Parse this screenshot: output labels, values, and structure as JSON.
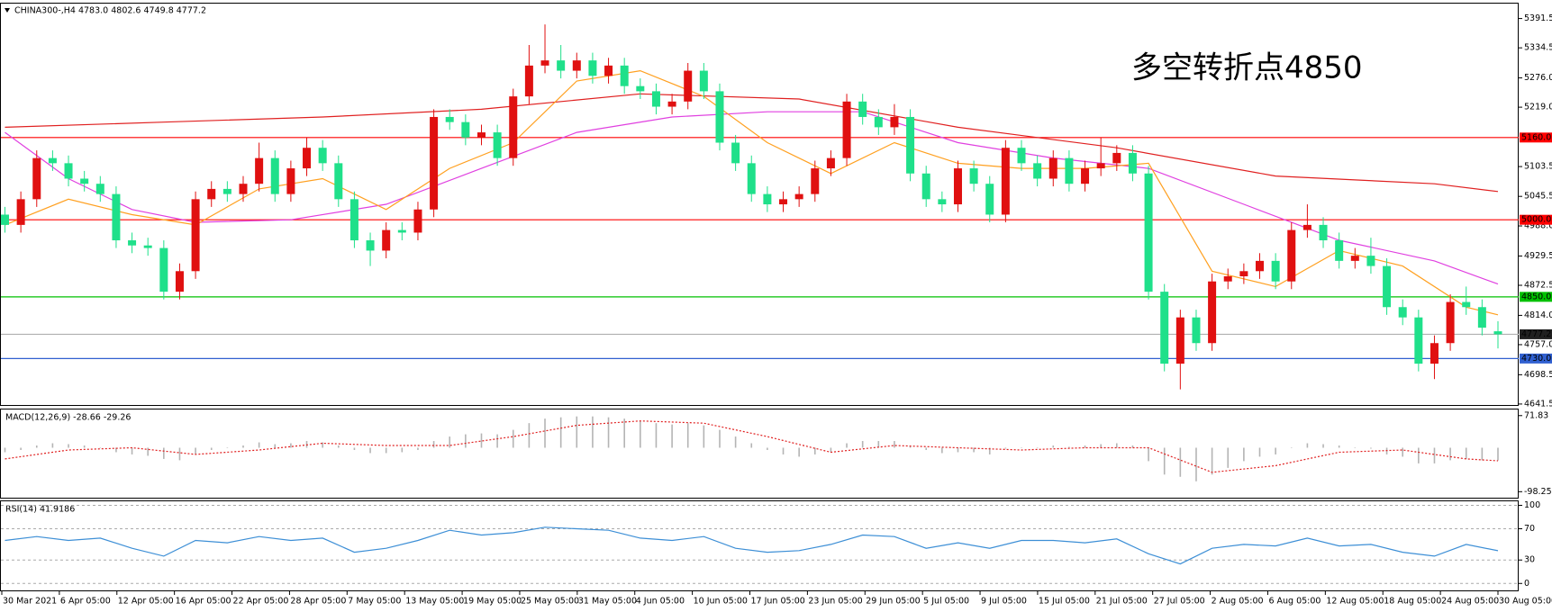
{
  "chart_data": [
    {
      "type": "candlestick",
      "title": "CHINA300-,H4  4783.0 4802.6 4749.8 4777.2",
      "annotation": "多空转折点4850",
      "annotation_color": "#e8141e",
      "up_color": "#e01010",
      "down_color": "#1fe08a",
      "open": [
        5010,
        4990,
        5040,
        5120,
        5110,
        5080,
        5070,
        5050,
        4960,
        4950,
        4945,
        4860,
        4900,
        5040,
        5060,
        5050,
        5070,
        5120,
        5050,
        5100,
        5140,
        5110,
        5040,
        4960,
        4940,
        4980,
        4975,
        5020,
        5200,
        5190,
        5160,
        5170,
        5120,
        5240,
        5300,
        5310,
        5290,
        5310,
        5280,
        5300,
        5260,
        5250,
        5220,
        5230,
        5290,
        5250,
        5150,
        5110,
        5050,
        5030,
        5040,
        5050,
        5100,
        5120,
        5230,
        5200,
        5180,
        5200,
        5090,
        5040,
        5030,
        5100,
        5070,
        5010,
        5140,
        5110,
        5080,
        5120,
        5070,
        5100,
        5110,
        5130,
        5090,
        4860,
        4720,
        4810,
        4760,
        4880,
        4890,
        4900,
        4920,
        4880,
        4980,
        4990,
        4960,
        4920,
        4930,
        4910,
        4830,
        4810,
        4720,
        4760,
        4840,
        4830,
        4783
      ],
      "high": [
        5025,
        5055,
        5135,
        5135,
        5125,
        5095,
        5085,
        5065,
        4975,
        4965,
        4960,
        4915,
        5055,
        5075,
        5075,
        5085,
        5150,
        5135,
        5115,
        5160,
        5155,
        5125,
        5055,
        4975,
        4995,
        4995,
        5035,
        5215,
        5215,
        5205,
        5185,
        5185,
        5255,
        5340,
        5380,
        5340,
        5325,
        5325,
        5315,
        5315,
        5275,
        5265,
        5245,
        5305,
        5305,
        5265,
        5165,
        5125,
        5065,
        5055,
        5065,
        5115,
        5135,
        5245,
        5245,
        5215,
        5225,
        5215,
        5105,
        5055,
        5115,
        5115,
        5085,
        5155,
        5155,
        5125,
        5135,
        5135,
        5115,
        5160,
        5145,
        5145,
        5105,
        4875,
        4825,
        4825,
        4895,
        4905,
        4915,
        4935,
        4935,
        4995,
        5030,
        5005,
        4975,
        4945,
        4965,
        4925,
        4845,
        4825,
        4775,
        4855,
        4870,
        4845,
        4802.6
      ],
      "low": [
        4975,
        4975,
        5025,
        5095,
        5065,
        5055,
        5035,
        4945,
        4935,
        4930,
        4845,
        4845,
        4885,
        5025,
        5035,
        5035,
        5055,
        5035,
        5035,
        5085,
        5095,
        5025,
        4945,
        4910,
        4925,
        4960,
        4960,
        5005,
        5175,
        5145,
        5145,
        5105,
        5105,
        5225,
        5285,
        5275,
        5275,
        5265,
        5265,
        5245,
        5235,
        5205,
        5205,
        5215,
        5235,
        5135,
        5095,
        5035,
        5015,
        5015,
        5025,
        5035,
        5085,
        5105,
        5185,
        5165,
        5165,
        5075,
        5025,
        5015,
        5015,
        5055,
        4995,
        4995,
        5095,
        5065,
        5065,
        5055,
        5055,
        5085,
        5095,
        5075,
        4845,
        4705,
        4670,
        4745,
        4745,
        4865,
        4875,
        4885,
        4865,
        4865,
        4965,
        4945,
        4905,
        4905,
        4895,
        4815,
        4795,
        4705,
        4690,
        4745,
        4815,
        4775,
        4749.8
      ],
      "close": [
        4990,
        5040,
        5120,
        5110,
        5080,
        5070,
        5050,
        4960,
        4950,
        4945,
        4860,
        4900,
        5040,
        5060,
        5050,
        5070,
        5120,
        5050,
        5100,
        5140,
        5110,
        5040,
        4960,
        4940,
        4980,
        4975,
        5020,
        5200,
        5190,
        5160,
        5170,
        5120,
        5240,
        5300,
        5310,
        5290,
        5310,
        5280,
        5300,
        5260,
        5250,
        5220,
        5230,
        5290,
        5250,
        5150,
        5110,
        5050,
        5030,
        5040,
        5050,
        5100,
        5120,
        5230,
        5200,
        5180,
        5200,
        5090,
        5040,
        5030,
        5100,
        5070,
        5010,
        5140,
        5110,
        5080,
        5120,
        5070,
        5100,
        5110,
        5130,
        5090,
        4860,
        4720,
        4810,
        4760,
        4880,
        4890,
        4900,
        4920,
        4880,
        4980,
        4990,
        4960,
        4920,
        4930,
        4910,
        4830,
        4810,
        4720,
        4760,
        4840,
        4830,
        4790,
        4777.2
      ],
      "ylim": [
        4639.6,
        5422.3
      ],
      "yticks": [
        5391.5,
        5334.5,
        {
          "value": 5276,
          "label": "5276.0"
        },
        {
          "value": 5219,
          "label": "5219.0"
        },
        5103.5,
        5045.5,
        {
          "value": 4988,
          "label": "4988.0"
        },
        4929.5,
        4872.5,
        {
          "value": 4814,
          "label": "4814.0"
        },
        {
          "value": 4757,
          "label": "4757.0"
        },
        4698.5,
        4641.5
      ],
      "lines": [
        {
          "color": "#e02020",
          "x": [
            0,
            10,
            20,
            30,
            40,
            50,
            60,
            70,
            80,
            90,
            94
          ],
          "values": [
            5180,
            5190,
            5200,
            5215,
            5245,
            5235,
            5180,
            5140,
            5085,
            5070,
            5055
          ]
        },
        {
          "color": "#e040e0",
          "x": [
            0,
            4,
            8,
            12,
            18,
            24,
            30,
            36,
            42,
            48,
            54,
            60,
            66,
            72,
            78,
            84,
            90,
            94
          ],
          "values": [
            5170,
            5080,
            5020,
            4995,
            5000,
            5030,
            5100,
            5170,
            5200,
            5210,
            5210,
            5150,
            5120,
            5100,
            5030,
            4960,
            4920,
            4875
          ]
        },
        {
          "color": "#ffa020",
          "x": [
            0,
            4,
            8,
            12,
            16,
            20,
            24,
            28,
            32,
            36,
            40,
            44,
            48,
            52,
            56,
            60,
            64,
            68,
            72,
            76,
            80,
            84,
            88,
            92,
            94
          ],
          "values": [
            4990,
            5040,
            5010,
            4990,
            5060,
            5080,
            5020,
            5100,
            5150,
            5270,
            5290,
            5240,
            5150,
            5090,
            5150,
            5110,
            5100,
            5100,
            5110,
            4900,
            4870,
            4940,
            4910,
            4830,
            4815
          ]
        }
      ],
      "levels": [
        {
          "value": 5160,
          "label": "5160.0",
          "color": "#ff0000",
          "box_color": "#ff0000"
        },
        {
          "value": 5000,
          "label": "5000.0",
          "color": "#ff0000",
          "box_color": "#ff0000"
        },
        {
          "value": 4850,
          "label": "4850.0",
          "color": "#00c000",
          "box_color": "#00c000"
        },
        {
          "value": 4777.2,
          "label": "4777.2",
          "color": "#b0b0b0",
          "box_color": "#202020"
        },
        {
          "value": 4730,
          "label": "4730.0",
          "color": "#3060d0",
          "box_color": "#3060d0"
        }
      ],
      "x_tick_labels": [
        "30 Mar 2021",
        "6 Apr 05:00",
        "12 Apr 05:00",
        "16 Apr 05:00",
        "22 Apr 05:00",
        "28 Apr 05:00",
        "7 May 05:00",
        "13 May 05:00",
        "19 May 05:00",
        "25 May 05:00",
        "31 May 05:00",
        "4 Jun 05:00",
        "10 Jun 05:00",
        "17 Jun 05:00",
        "23 Jun 05:00",
        "29 Jun 05:00",
        "5 Jul 05:00",
        "9 Jul 05:00",
        "15 Jul 05:00",
        "21 Jul 05:00",
        "27 Jul 05:00",
        "2 Aug 05:00",
        "6 Aug 05:00",
        "12 Aug 05:00",
        "18 Aug 05:00",
        "24 Aug 05:00",
        "30 Aug 05:00"
      ]
    },
    {
      "type": "bar",
      "title": "MACD(12,26,9) -28.66 -29.26",
      "color": "#b4b4b4",
      "values": [
        -10,
        -5,
        5,
        10,
        8,
        5,
        0,
        -10,
        -15,
        -18,
        -25,
        -28,
        -15,
        -5,
        0,
        5,
        12,
        8,
        10,
        15,
        12,
        5,
        -5,
        -12,
        -12,
        -10,
        -5,
        15,
        25,
        30,
        32,
        30,
        40,
        55,
        65,
        68,
        70,
        70,
        68,
        65,
        60,
        55,
        52,
        55,
        50,
        40,
        25,
        10,
        -5,
        -15,
        -20,
        -15,
        -10,
        10,
        15,
        15,
        15,
        5,
        -5,
        -12,
        -10,
        -10,
        -15,
        -2,
        0,
        0,
        5,
        2,
        5,
        8,
        10,
        5,
        -30,
        -60,
        -65,
        -75,
        -60,
        -45,
        -30,
        -20,
        -15,
        0,
        10,
        8,
        5,
        0,
        -2,
        -15,
        -20,
        -35,
        -35,
        -28,
        -25,
        -28,
        -28.66
      ],
      "signal": {
        "color": "#e02020",
        "x": [
          0,
          4,
          8,
          12,
          16,
          20,
          24,
          28,
          32,
          36,
          40,
          44,
          48,
          52,
          56,
          60,
          64,
          68,
          72,
          76,
          80,
          84,
          88,
          92,
          94
        ],
        "values": [
          -25,
          -5,
          0,
          -15,
          -5,
          10,
          5,
          5,
          25,
          50,
          60,
          55,
          25,
          -10,
          5,
          0,
          -5,
          0,
          0,
          -55,
          -40,
          -10,
          -5,
          -25,
          -29.26
        ]
      },
      "ylim": [
        -111.7,
        87.5
      ],
      "yticks": [
        71.83,
        -98.25
      ]
    },
    {
      "type": "line",
      "title": "RSI(14) 41.9186",
      "color": "#3d8fd6",
      "grid": true,
      "x": [
        0,
        2,
        4,
        6,
        8,
        10,
        12,
        14,
        16,
        18,
        20,
        22,
        24,
        26,
        28,
        30,
        32,
        34,
        36,
        38,
        40,
        42,
        44,
        46,
        48,
        50,
        52,
        54,
        56,
        58,
        60,
        62,
        64,
        66,
        68,
        70,
        72,
        74,
        76,
        78,
        80,
        82,
        84,
        86,
        88,
        90,
        92,
        94
      ],
      "values": [
        55,
        60,
        55,
        58,
        45,
        35,
        55,
        52,
        60,
        55,
        58,
        40,
        45,
        55,
        68,
        62,
        65,
        72,
        70,
        68,
        58,
        55,
        60,
        45,
        40,
        42,
        50,
        62,
        60,
        45,
        52,
        45,
        55,
        55,
        52,
        57,
        38,
        25,
        45,
        50,
        48,
        58,
        48,
        50,
        40,
        35,
        50,
        41.9186
      ],
      "ylim": [
        -8.9,
        106.3
      ],
      "yticks": [
        100,
        70,
        30,
        0
      ]
    }
  ]
}
